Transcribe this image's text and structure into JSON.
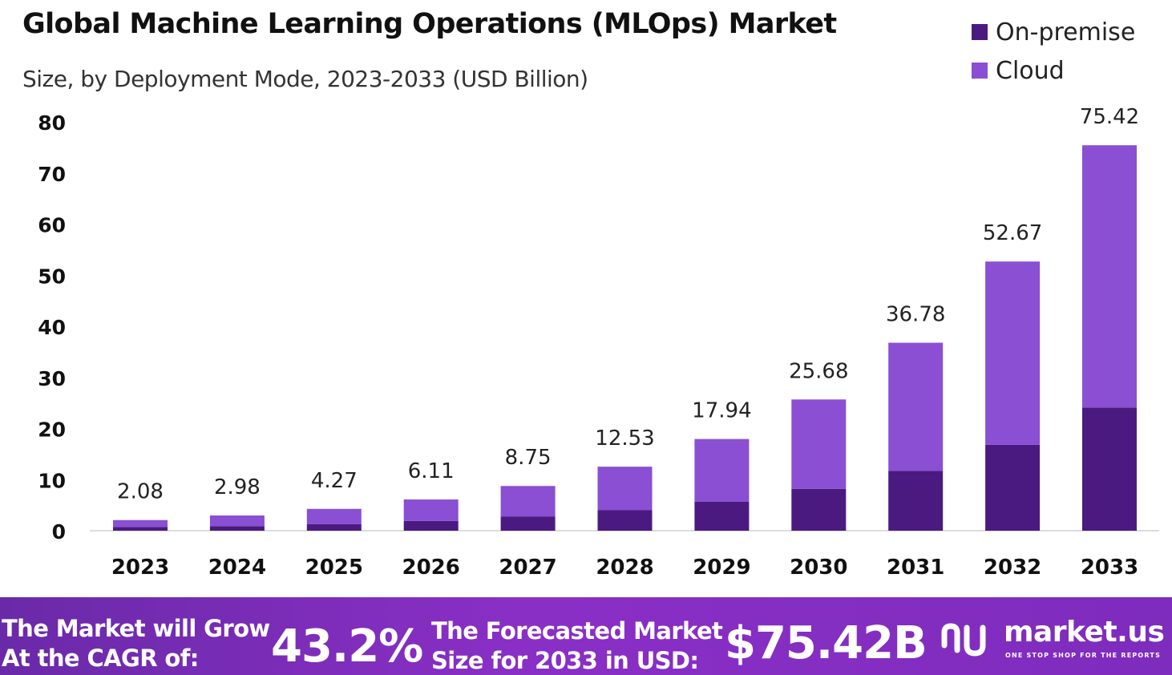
{
  "chart_data": {
    "type": "bar",
    "stacked": true,
    "title": "Global Machine Learning Operations (MLOps) Market",
    "subtitle": "Size, by Deployment Mode, 2023-2033 (USD Billion)",
    "categories": [
      "2023",
      "2024",
      "2025",
      "2026",
      "2027",
      "2028",
      "2029",
      "2030",
      "2031",
      "2032",
      "2033"
    ],
    "series": [
      {
        "name": "On-premise",
        "color": "#4b1a80",
        "values": [
          0.7,
          0.9,
          1.3,
          1.9,
          2.8,
          4.0,
          5.7,
          8.2,
          11.7,
          16.8,
          24.1
        ]
      },
      {
        "name": "Cloud",
        "color": "#8a4fd3",
        "values": [
          1.38,
          2.08,
          2.97,
          4.21,
          5.95,
          8.53,
          12.24,
          17.48,
          25.08,
          35.87,
          51.32
        ]
      }
    ],
    "totals": [
      "2.08",
      "2.98",
      "4.27",
      "6.11",
      "8.75",
      "12.53",
      "17.94",
      "25.68",
      "36.78",
      "52.67",
      "75.42"
    ],
    "ylim": [
      0,
      80
    ],
    "yticks": [
      "0",
      "10",
      "20",
      "30",
      "40",
      "50",
      "60",
      "70",
      "80"
    ],
    "xlabel": "",
    "ylabel": "",
    "legend_position": "top-right",
    "grid": false
  },
  "footer": {
    "cagr_label_line1": "The Market will Grow",
    "cagr_label_line2": "At the CAGR of:",
    "cagr_value": "43.2%",
    "forecast_label_line1": "The Forecasted Market",
    "forecast_label_line2": "Size for 2033 in USD:",
    "forecast_value": "$75.42B",
    "brand_name": "market.us",
    "brand_tagline": "ONE STOP SHOP FOR THE REPORTS"
  }
}
